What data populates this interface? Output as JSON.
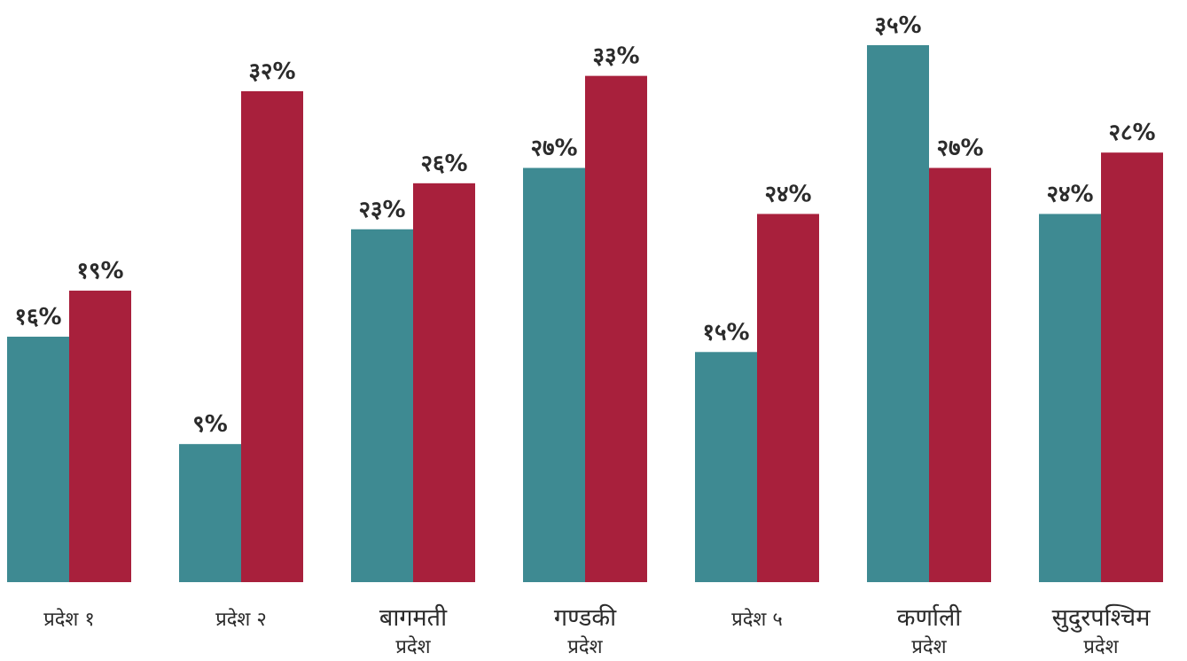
{
  "chart_data": {
    "type": "bar",
    "categories": [
      [
        "प्रदेश १"
      ],
      [
        "प्रदेश २"
      ],
      [
        "बागमती",
        "प्रदेश"
      ],
      [
        "गण्डकी",
        "प्रदेश"
      ],
      [
        "प्रदेश ५"
      ],
      [
        "कर्णाली",
        "प्रदेश"
      ],
      [
        "सुदुरपश्चिम",
        "प्रदेश"
      ]
    ],
    "series": [
      {
        "color": "#3e8a92",
        "values": [
          16,
          9,
          23,
          27,
          15,
          35,
          24
        ],
        "value_labels": [
          "१६%",
          "९%",
          "२३%",
          "२७%",
          "१५%",
          "३५%",
          "२४%"
        ]
      },
      {
        "color": "#a8203c",
        "values": [
          19,
          32,
          26,
          33,
          24,
          27,
          28
        ],
        "value_labels": [
          "१९%",
          "३२%",
          "२६%",
          "३३%",
          "२४%",
          "२७%",
          "२८%"
        ]
      }
    ],
    "ylim": [
      0,
      35
    ]
  }
}
